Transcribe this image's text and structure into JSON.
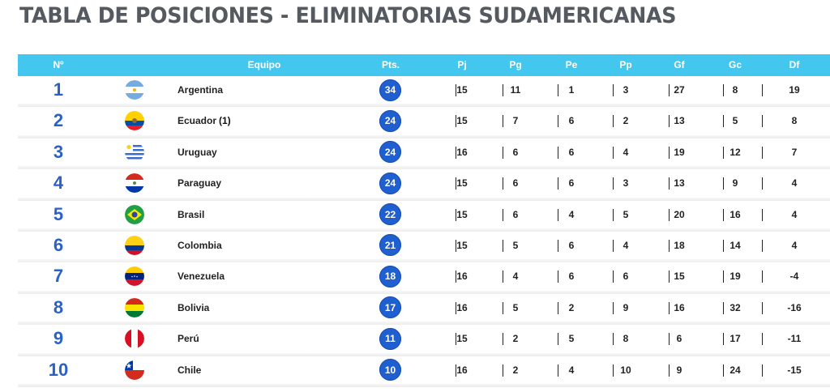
{
  "title": "TABLA DE POSICIONES - ELIMINATORIAS SUDAMERICANAS",
  "headers": {
    "pos": "Nº",
    "team": "Equipo",
    "pts": "Pts.",
    "pj": "Pj",
    "pg": "Pg",
    "pe": "Pe",
    "pp": "Pp",
    "gf": "Gf",
    "gc": "Gc",
    "df": "Df"
  },
  "rows": [
    {
      "pos": "1",
      "team": "Argentina",
      "note": "",
      "flag": "argentina-flag-icon",
      "pts": "34",
      "pj": "15",
      "pg": "11",
      "pe": "1",
      "pp": "3",
      "gf": "27",
      "gc": "8",
      "df": "19"
    },
    {
      "pos": "2",
      "team": "Ecuador",
      "note": "(1)",
      "flag": "ecuador-flag-icon",
      "pts": "24",
      "pj": "15",
      "pg": "7",
      "pe": "6",
      "pp": "2",
      "gf": "13",
      "gc": "5",
      "df": "8"
    },
    {
      "pos": "3",
      "team": "Uruguay",
      "note": "",
      "flag": "uruguay-flag-icon",
      "pts": "24",
      "pj": "16",
      "pg": "6",
      "pe": "6",
      "pp": "4",
      "gf": "19",
      "gc": "12",
      "df": "7"
    },
    {
      "pos": "4",
      "team": "Paraguay",
      "note": "",
      "flag": "paraguay-flag-icon",
      "pts": "24",
      "pj": "15",
      "pg": "6",
      "pe": "6",
      "pp": "3",
      "gf": "13",
      "gc": "9",
      "df": "4"
    },
    {
      "pos": "5",
      "team": "Brasil",
      "note": "",
      "flag": "brasil-flag-icon",
      "pts": "22",
      "pj": "15",
      "pg": "6",
      "pe": "4",
      "pp": "5",
      "gf": "20",
      "gc": "16",
      "df": "4"
    },
    {
      "pos": "6",
      "team": "Colombia",
      "note": "",
      "flag": "colombia-flag-icon",
      "pts": "21",
      "pj": "15",
      "pg": "5",
      "pe": "6",
      "pp": "4",
      "gf": "18",
      "gc": "14",
      "df": "4"
    },
    {
      "pos": "7",
      "team": "Venezuela",
      "note": "",
      "flag": "venezuela-flag-icon",
      "pts": "18",
      "pj": "16",
      "pg": "4",
      "pe": "6",
      "pp": "6",
      "gf": "15",
      "gc": "19",
      "df": "-4"
    },
    {
      "pos": "8",
      "team": "Bolivia",
      "note": "",
      "flag": "bolivia-flag-icon",
      "pts": "17",
      "pj": "16",
      "pg": "5",
      "pe": "2",
      "pp": "9",
      "gf": "16",
      "gc": "32",
      "df": "-16"
    },
    {
      "pos": "9",
      "team": "Perú",
      "note": "",
      "flag": "peru-flag-icon",
      "pts": "11",
      "pj": "15",
      "pg": "2",
      "pe": "5",
      "pp": "8",
      "gf": "6",
      "gc": "17",
      "df": "-11"
    },
    {
      "pos": "10",
      "team": "Chile",
      "note": "",
      "flag": "chile-flag-icon",
      "pts": "10",
      "pj": "16",
      "pg": "2",
      "pe": "4",
      "pp": "10",
      "gf": "9",
      "gc": "24",
      "df": "-15"
    }
  ],
  "colors": {
    "header_bg": "#44c7ee",
    "position_text": "#2a60c7",
    "points_badge": "#1f5fd0",
    "title_text": "#555a61"
  }
}
